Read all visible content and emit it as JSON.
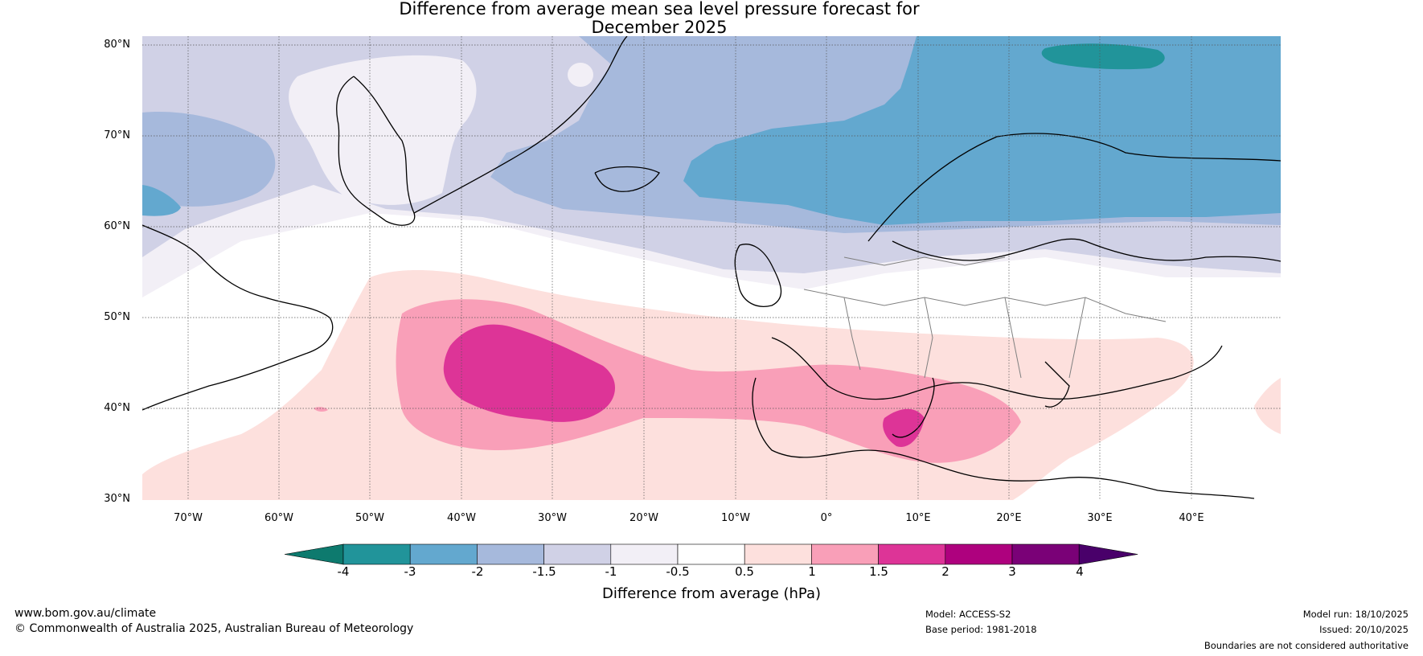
{
  "title": {
    "line1": "Difference from average mean sea level pressure forecast for",
    "line2": "December 2025"
  },
  "map": {
    "lat_labels": [
      "80°N",
      "70°N",
      "60°N",
      "50°N",
      "40°N",
      "30°N"
    ],
    "lon_labels": [
      "70°W",
      "60°W",
      "50°W",
      "40°W",
      "30°W",
      "20°W",
      "10°W",
      "0°",
      "10°E",
      "20°E",
      "30°E",
      "40°E"
    ]
  },
  "colorbar": {
    "ticks": [
      "-4",
      "-3",
      "-2",
      "-1.5",
      "-1",
      "-0.5",
      "0.5",
      "1",
      "1.5",
      "2",
      "3",
      "4"
    ],
    "colors": [
      "#0d7a6e",
      "#21949a",
      "#63a8cf",
      "#a6b9dc",
      "#d0d1e6",
      "#f2eff6",
      "#ffffff",
      "#fde0dd",
      "#f99fb8",
      "#dd3497",
      "#ae017e",
      "#7a0177",
      "#49006a"
    ],
    "label": "Difference from average (hPa)"
  },
  "footer": {
    "website": "www.bom.gov.au/climate",
    "copyright": "© Commonwealth of Australia 2025, Australian Bureau of Meteorology",
    "model": "Model: ACCESS-S2",
    "base_period": "Base period: 1981-2018",
    "model_run": "Model run: 18/10/2025",
    "issued": "Issued: 20/10/2025",
    "boundaries": "Boundaries are not considered authoritative"
  }
}
